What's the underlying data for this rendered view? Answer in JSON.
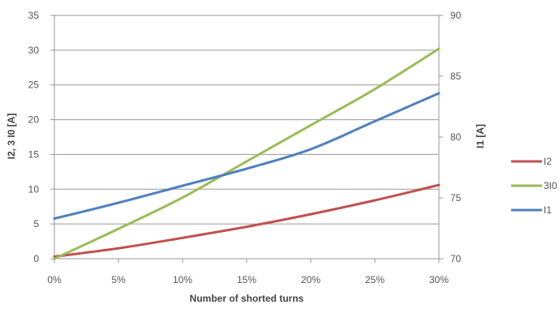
{
  "chart_data": {
    "type": "line",
    "xlabel": "Number of shorted turns",
    "ylabel_left": "I2, 3 I0 [A]",
    "ylabel_right": "I1 [A]",
    "x_ticks": [
      "0%",
      "5%",
      "10%",
      "15%",
      "20%",
      "25%",
      "30%"
    ],
    "x": [
      0,
      5,
      10,
      15,
      20,
      25,
      30
    ],
    "ylim_left": [
      0,
      35
    ],
    "y_ticks_left": [
      "0",
      "5",
      "10",
      "15",
      "20",
      "25",
      "30",
      "35"
    ],
    "ylim_right": [
      70,
      90
    ],
    "y_ticks_right": [
      "70",
      "75",
      "80",
      "85",
      "90"
    ],
    "grid": "horizontal",
    "legend_position": "right",
    "series": [
      {
        "name": "I2",
        "axis": "left",
        "color": "#c0504d",
        "values": [
          0.3,
          1.5,
          3.0,
          4.6,
          6.4,
          8.4,
          10.6
        ]
      },
      {
        "name": "3I0",
        "axis": "left",
        "color": "#9bbb59",
        "values": [
          0.0,
          4.3,
          8.8,
          14.0,
          19.2,
          24.4,
          30.2
        ]
      },
      {
        "name": "I1",
        "axis": "right",
        "color": "#4f81bd",
        "values": [
          73.3,
          74.6,
          76.0,
          77.4,
          79.0,
          81.3,
          83.6
        ]
      }
    ]
  }
}
